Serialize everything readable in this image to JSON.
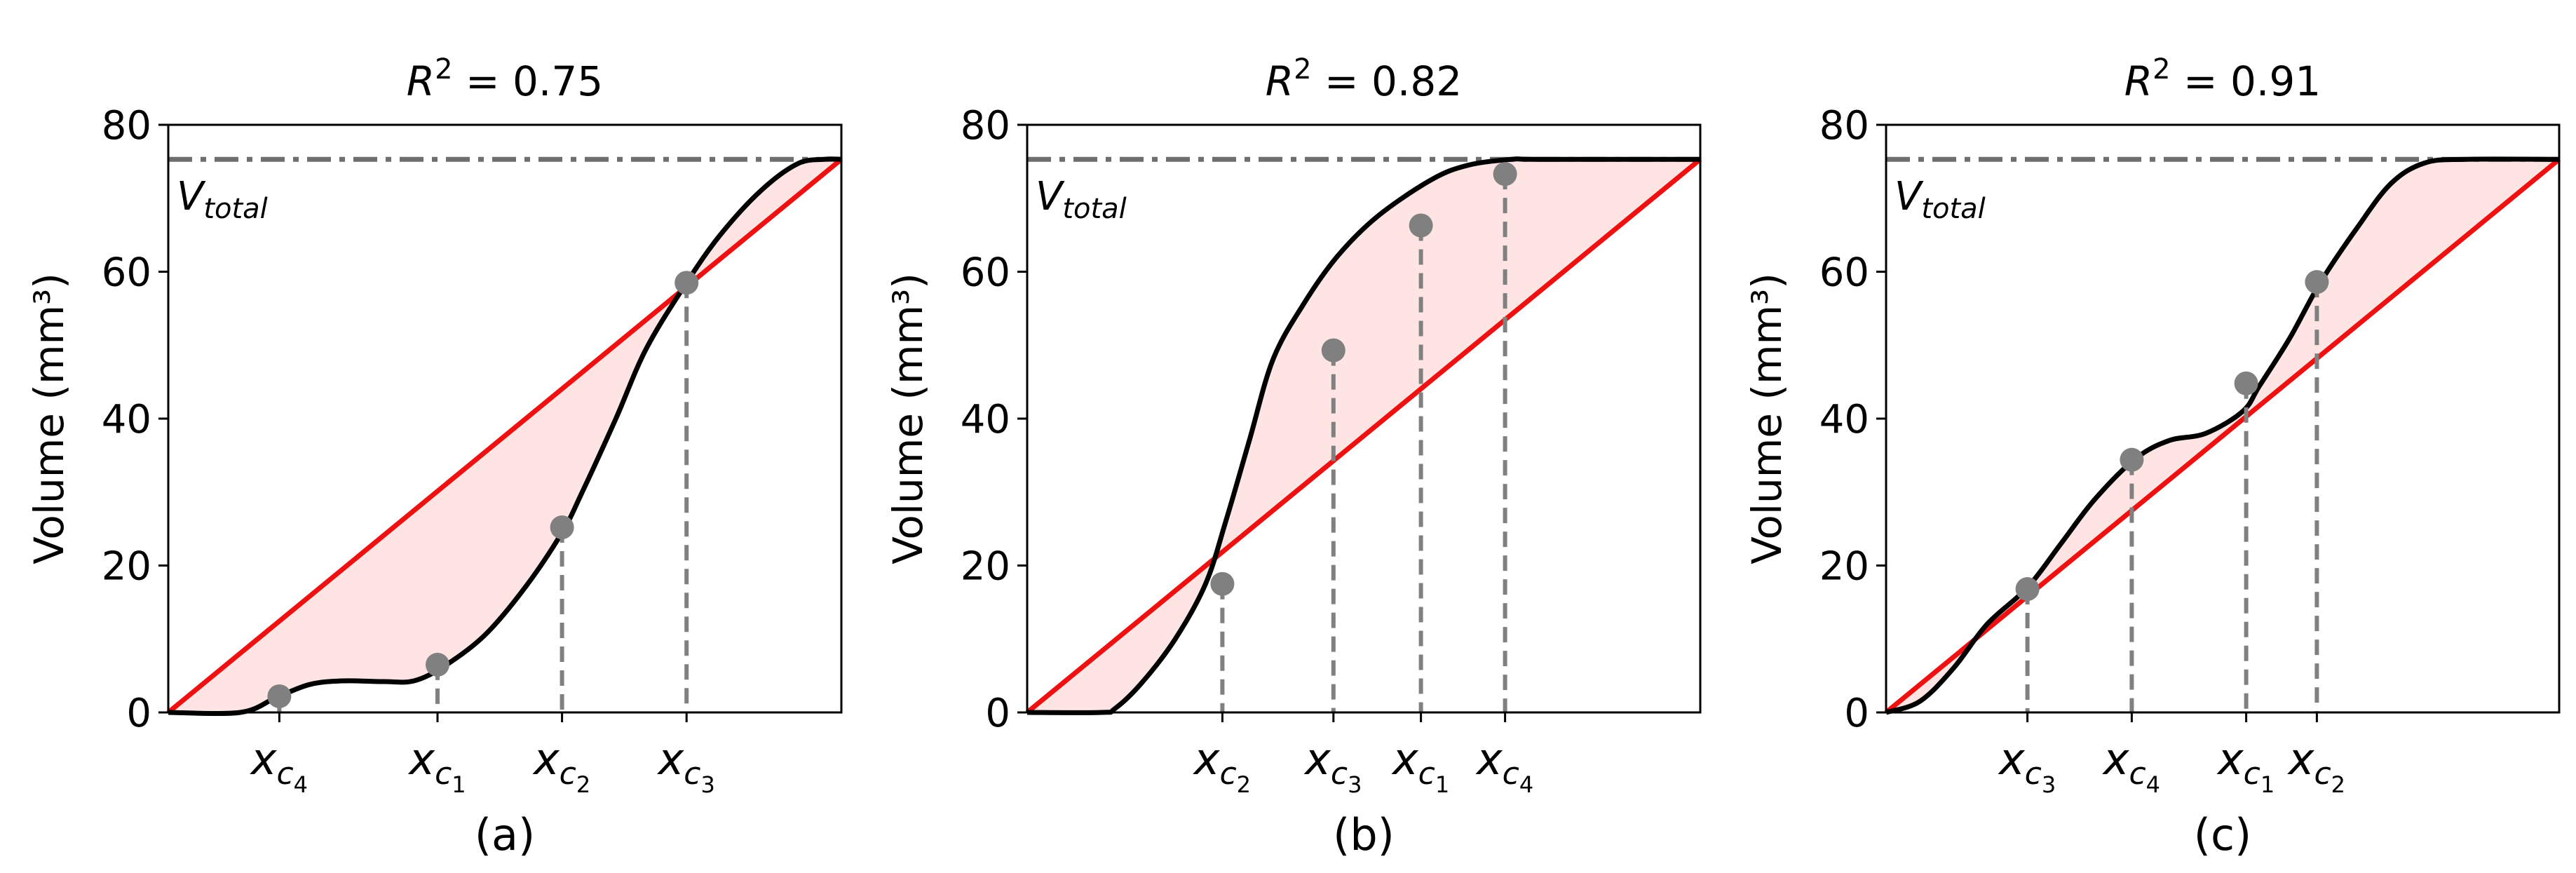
{
  "chart_data": [
    {
      "type": "line",
      "title_prefix": "R",
      "title_sup": "2",
      "title_value": "= 0.75",
      "caption": "(a)",
      "ylabel": "Volume (mm³)",
      "ylim": [
        0,
        80
      ],
      "yticks": [
        0,
        20,
        40,
        60,
        80
      ],
      "xlim": [
        0,
        1
      ],
      "v_total": 75.3,
      "v_total_label": {
        "base": "V",
        "sub": "total"
      },
      "curve": {
        "x": [
          0,
          0.107,
          0.16,
          0.21,
          0.26,
          0.32,
          0.365,
          0.41,
          0.47,
          0.53,
          0.585,
          0.615,
          0.665,
          0.71,
          0.77,
          0.82,
          0.88,
          0.935,
          0.975,
          1.0
        ],
        "y": [
          0,
          0,
          2.0,
          3.8,
          4.3,
          4.2,
          4.3,
          6.3,
          10.5,
          17.0,
          24.5,
          30.0,
          40.0,
          49.5,
          58.5,
          65.0,
          71.0,
          74.7,
          75.3,
          75.3
        ]
      },
      "reference_line": {
        "x": [
          0,
          1
        ],
        "y": [
          0,
          75.3
        ]
      },
      "critical_points": [
        {
          "label": "c",
          "sub": "4",
          "x": 0.165,
          "y": 2.2
        },
        {
          "label": "c",
          "sub": "1",
          "x": 0.4,
          "y": 6.5
        },
        {
          "label": "c",
          "sub": "2",
          "x": 0.585,
          "y": 25.2
        },
        {
          "label": "c",
          "sub": "3",
          "x": 0.77,
          "y": 58.5
        }
      ],
      "xtick_letter": "x"
    },
    {
      "type": "line",
      "title_prefix": "R",
      "title_sup": "2",
      "title_value": "= 0.82",
      "caption": "(b)",
      "ylabel": "Volume (mm³)",
      "ylim": [
        0,
        80
      ],
      "yticks": [
        0,
        20,
        40,
        60,
        80
      ],
      "xlim": [
        0,
        1
      ],
      "v_total": 75.3,
      "v_total_label": {
        "base": "V",
        "sub": "total"
      },
      "curve": {
        "x": [
          0,
          0.11,
          0.13,
          0.17,
          0.22,
          0.265,
          0.295,
          0.33,
          0.365,
          0.41,
          0.46,
          0.52,
          0.6,
          0.655,
          0.72,
          0.76,
          1.0
        ],
        "y": [
          0,
          0,
          0.5,
          4.0,
          10.0,
          17.5,
          26.0,
          37.0,
          48.0,
          55.5,
          62.0,
          67.5,
          72.5,
          74.5,
          75.3,
          75.3,
          75.3
        ]
      },
      "reference_line": {
        "x": [
          0,
          1
        ],
        "y": [
          0,
          75.3
        ]
      },
      "critical_points": [
        {
          "label": "c",
          "sub": "2",
          "x": 0.29,
          "y": 17.5
        },
        {
          "label": "c",
          "sub": "3",
          "x": 0.455,
          "y": 49.3
        },
        {
          "label": "c",
          "sub": "1",
          "x": 0.585,
          "y": 66.3
        },
        {
          "label": "c",
          "sub": "4",
          "x": 0.71,
          "y": 73.3
        }
      ],
      "xtick_letter": "x"
    },
    {
      "type": "line",
      "title_prefix": "R",
      "title_sup": "2",
      "title_value": "= 0.91",
      "caption": "(c)",
      "ylabel": "Volume (mm³)",
      "ylim": [
        0,
        80
      ],
      "yticks": [
        0,
        20,
        40,
        60,
        80
      ],
      "xlim": [
        0,
        1
      ],
      "v_total": 75.3,
      "v_total_label": {
        "base": "V",
        "sub": "total"
      },
      "curve": {
        "x": [
          0,
          0.05,
          0.1,
          0.15,
          0.21,
          0.26,
          0.31,
          0.37,
          0.42,
          0.475,
          0.53,
          0.555,
          0.6,
          0.645,
          0.7,
          0.75,
          0.8,
          0.86,
          1.0
        ],
        "y": [
          0,
          1.5,
          6.0,
          12.0,
          17.0,
          23.0,
          29.0,
          34.5,
          37.0,
          38.0,
          41.0,
          44.5,
          51.0,
          58.5,
          66.0,
          72.0,
          74.8,
          75.3,
          75.3
        ]
      },
      "reference_line": {
        "x": [
          0,
          1
        ],
        "y": [
          0,
          75.3
        ]
      },
      "critical_points": [
        {
          "label": "c",
          "sub": "3",
          "x": 0.21,
          "y": 16.8
        },
        {
          "label": "c",
          "sub": "4",
          "x": 0.365,
          "y": 34.4
        },
        {
          "label": "c",
          "sub": "1",
          "x": 0.535,
          "y": 44.8
        },
        {
          "label": "c",
          "sub": "2",
          "x": 0.64,
          "y": 58.6
        }
      ],
      "xtick_letter": "x"
    }
  ],
  "colors": {
    "curve": "#000000",
    "reference": "#ee1111",
    "fill": "#ffe4e4",
    "points": "#808080",
    "dashed": "#808080",
    "vtotal": "#6e6e6e"
  }
}
